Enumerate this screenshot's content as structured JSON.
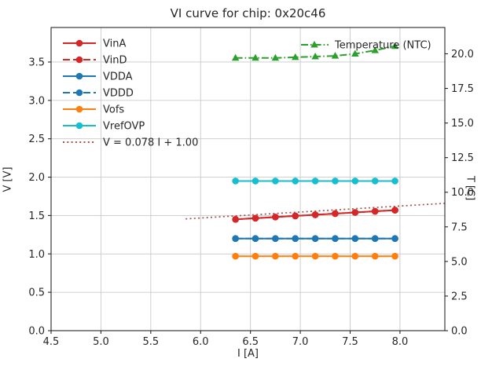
{
  "chart_data": {
    "type": "line",
    "title": "VI curve for chip: 0x20c46",
    "xlabel": "I [A]",
    "ylabel_left": "V [V]",
    "ylabel_right": "T [C]",
    "xlim": [
      4.5,
      8.45
    ],
    "ylim_left": [
      0.0,
      3.95
    ],
    "ylim_right": [
      0.0,
      21.9
    ],
    "x_ticks": [
      4.5,
      5.0,
      5.5,
      6.0,
      6.5,
      7.0,
      7.5,
      8.0
    ],
    "y_ticks_left": [
      0.0,
      0.5,
      1.0,
      1.5,
      2.0,
      2.5,
      3.0,
      3.5
    ],
    "y_ticks_right": [
      0.0,
      2.5,
      5.0,
      7.5,
      10.0,
      12.5,
      15.0,
      17.5,
      20.0
    ],
    "grid": true,
    "grid_color": "#c9c9c9",
    "axis_color": "#262626",
    "x": [
      6.35,
      6.55,
      6.75,
      6.95,
      7.15,
      7.35,
      7.55,
      7.75,
      7.95
    ],
    "series": [
      {
        "name": "VinA",
        "axis": "left",
        "color": "#d62728",
        "style": "solid",
        "marker": "circle",
        "values": [
          1.45,
          1.465,
          1.48,
          1.495,
          1.51,
          1.525,
          1.54,
          1.555,
          1.57
        ]
      },
      {
        "name": "VinD",
        "axis": "left",
        "color": "#d62728",
        "style": "dashed",
        "marker": "circle",
        "values": [
          1.45,
          1.465,
          1.48,
          1.495,
          1.51,
          1.525,
          1.54,
          1.555,
          1.57
        ]
      },
      {
        "name": "VDDA",
        "axis": "left",
        "color": "#1f77b4",
        "style": "solid",
        "marker": "circle",
        "values": [
          1.2,
          1.2,
          1.2,
          1.2,
          1.2,
          1.2,
          1.2,
          1.2,
          1.2
        ]
      },
      {
        "name": "VDDD",
        "axis": "left",
        "color": "#1f77b4",
        "style": "dashed",
        "marker": "circle",
        "values": [
          1.2,
          1.2,
          1.2,
          1.2,
          1.2,
          1.2,
          1.2,
          1.2,
          1.2
        ]
      },
      {
        "name": "Vofs",
        "axis": "left",
        "color": "#ff7f0e",
        "style": "solid",
        "marker": "circle",
        "values": [
          0.97,
          0.97,
          0.97,
          0.97,
          0.97,
          0.97,
          0.97,
          0.97,
          0.97
        ]
      },
      {
        "name": "VrefOVP",
        "axis": "left",
        "color": "#17becf",
        "style": "solid",
        "marker": "circle",
        "values": [
          1.95,
          1.95,
          1.95,
          1.95,
          1.95,
          1.95,
          1.95,
          1.95,
          1.95
        ]
      },
      {
        "name": "Temperature (NTC)",
        "axis": "right",
        "color": "#2ca02c",
        "style": "dashdot",
        "marker": "triangle",
        "values": [
          19.7,
          19.7,
          19.7,
          19.75,
          19.8,
          19.85,
          20.0,
          20.25,
          20.55
        ]
      }
    ],
    "fit_line": {
      "label": "V = 0.078 I + 1.00",
      "slope": 0.078,
      "intercept": 1.0,
      "x_start": 5.85,
      "x_end": 8.45,
      "color": "#a5524c",
      "style": "dotted"
    },
    "legend_left_position": "upper-left",
    "legend_right_position": "upper-right"
  }
}
